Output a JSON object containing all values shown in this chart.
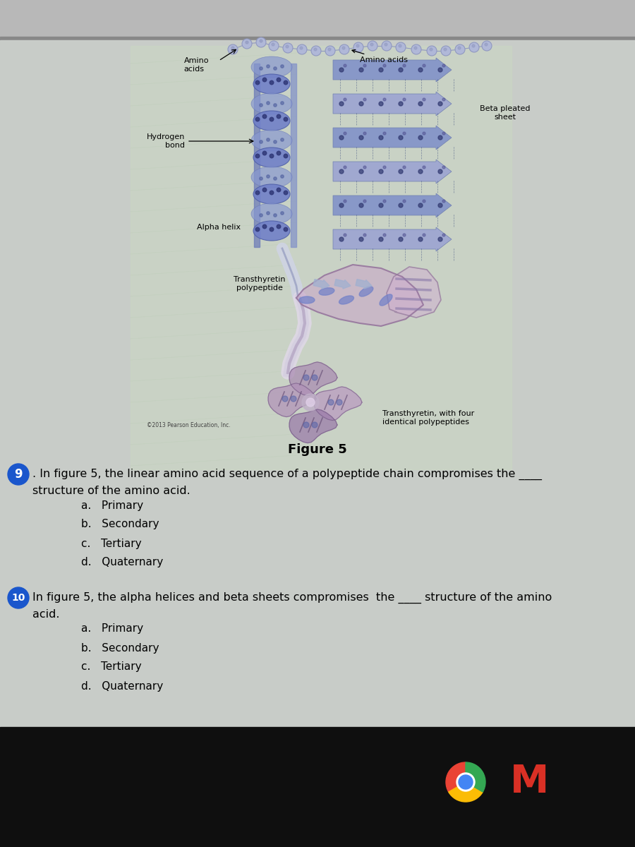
{
  "figure_caption": "Figure 5",
  "q9_number": "9",
  "q9_circle_color": "#1a56cc",
  "q9_text_line1": ". In figure 5, the linear amino acid sequence of a polypeptide chain compromises the ____",
  "q9_text_line2": "structure of the amino acid.",
  "q9_choices": [
    "a.   Primary",
    "b.   Secondary",
    "c.   Tertiary",
    "d.   Quaternary"
  ],
  "q10_number": "10",
  "q10_circle_color": "#1a56cc",
  "q10_text_line1": "n figure 5, the alpha helices and beta sheets compromises  the ____ structure of the amino",
  "q10_text_line2": "acid.",
  "q10_choices": [
    "a.   Primary",
    "b.   Secondary",
    "c.   Tertiary",
    "d.   Quaternary"
  ],
  "label_amino1": "Amino\nacids",
  "label_amino2": "Amino acids",
  "label_hydrogen": "Hydrogen\nbond",
  "label_beta": "Beta pleated\nsheet",
  "label_alpha": "Alpha helix",
  "label_trans_poly": "Transthyretin\npolypeptide",
  "label_trans_four": "Transthyretin, with four\nidentical polypeptides",
  "label_copyright": "©2013 Pearson Education, Inc.",
  "bg_browser": "#c0c0c0",
  "bg_content": "#cccccc",
  "bg_green_light": "#d0ddc8",
  "bg_dark": "#111111",
  "text_color": "#000000",
  "helix_blue": "#7080c8",
  "helix_dark": "#5060a8",
  "sheet_blue": "#8898c8",
  "bead_color": "#9098c0",
  "bead_fill": "#b0b8d8",
  "ribbon_pink": "#c8a0c8",
  "ribbon_dark": "#9878a8",
  "label_fontsize": 8.0,
  "question_fontsize": 11.5,
  "choice_fontsize": 11,
  "caption_fontsize": 13
}
